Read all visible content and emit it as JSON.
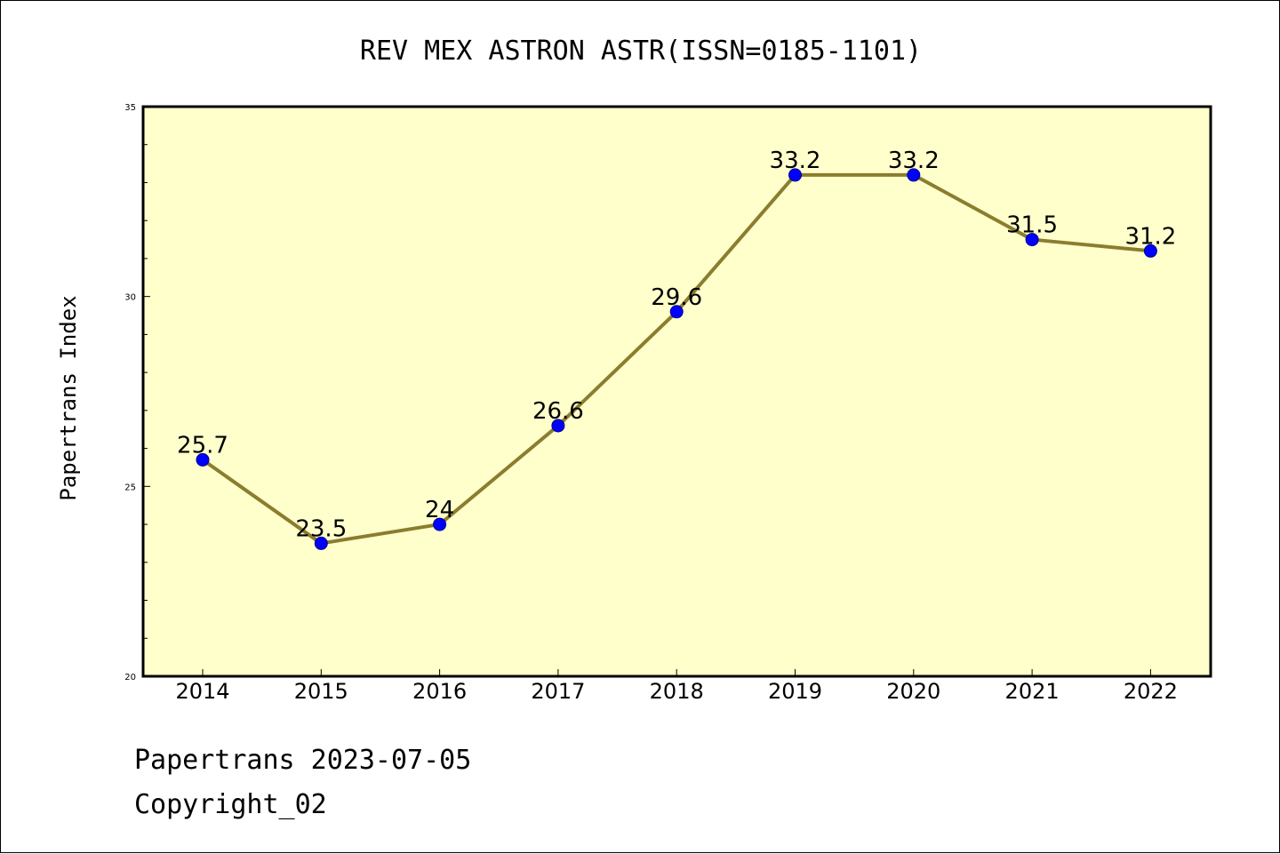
{
  "chart_data": {
    "type": "line",
    "title": "REV MEX ASTRON ASTR(ISSN=0185-1101)",
    "xlabel": "",
    "ylabel": "Papertrans Index",
    "categories": [
      "2014",
      "2015",
      "2016",
      "2017",
      "2018",
      "2019",
      "2020",
      "2021",
      "2022"
    ],
    "values": [
      25.7,
      23.5,
      24,
      26.6,
      29.6,
      33.2,
      33.2,
      31.5,
      31.2
    ],
    "data_labels": [
      "25.7",
      "23.5",
      "24",
      "26.6",
      "29.6",
      "33.2",
      "33.2",
      "31.5",
      "31.2"
    ],
    "ylim": [
      20,
      35
    ],
    "yticks": [
      20,
      25,
      30,
      35
    ],
    "grid": false,
    "colors": {
      "plot_background": "#ffffcc",
      "line": "#8b7d2e",
      "marker_fill": "#0000ff",
      "marker_edge": "#00008b"
    }
  },
  "footer": {
    "line1": "Papertrans 2023-07-05",
    "line2": "Copyright_02"
  }
}
